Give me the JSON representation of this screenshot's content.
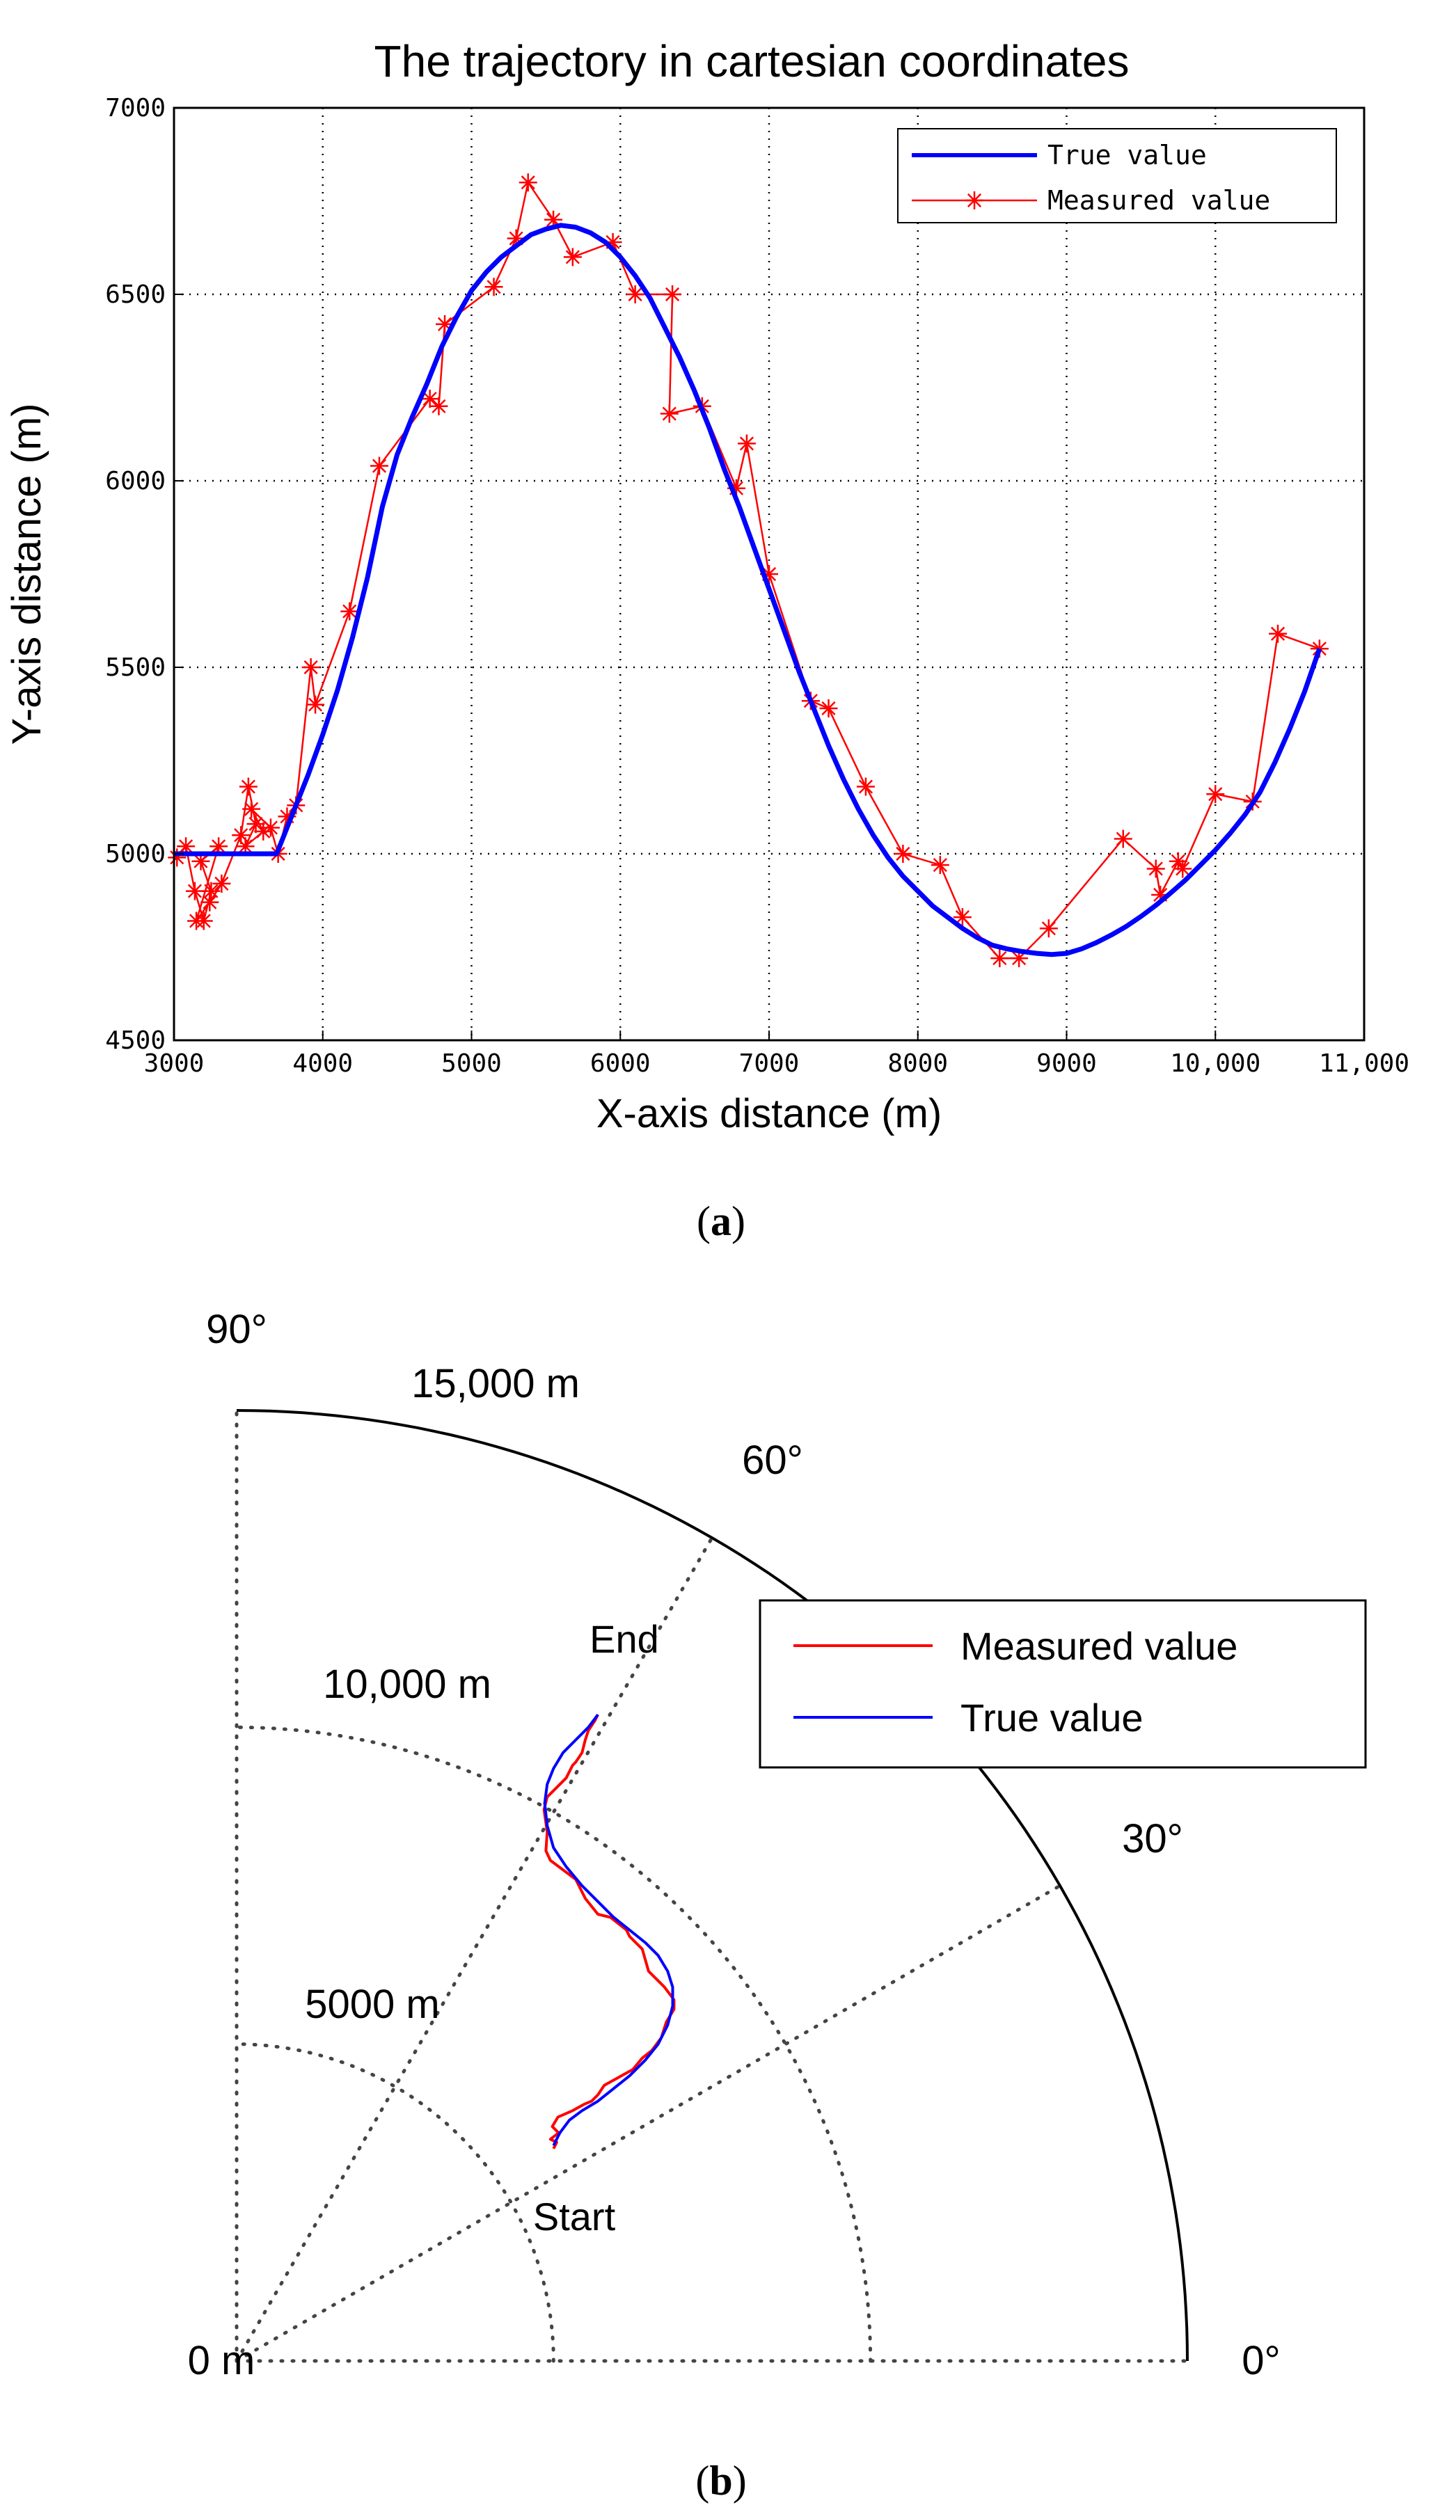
{
  "chart_data": [
    {
      "type": "line",
      "panel_label": "(a)",
      "panel_label_letter": "a",
      "title": "The trajectory in cartesian coordinates",
      "xlabel": "X-axis distance (m)",
      "ylabel": "Y-axis distance (m)",
      "xlim": [
        3000,
        11000
      ],
      "ylim": [
        4500,
        7000
      ],
      "x_ticks": [
        3000,
        4000,
        5000,
        6000,
        7000,
        8000,
        9000,
        10000,
        11000
      ],
      "x_tick_labels": [
        "3000",
        "4000",
        "5000",
        "6000",
        "7000",
        "8000",
        "9000",
        "10,000",
        "11,000"
      ],
      "y_ticks": [
        4500,
        5000,
        5500,
        6000,
        6500,
        7000
      ],
      "y_tick_labels": [
        "4500",
        "5000",
        "5500",
        "6000",
        "6500",
        "7000"
      ],
      "grid": true,
      "legend_position": "top-right",
      "series": [
        {
          "name": "True value",
          "color": "#0000ff",
          "style": "solid",
          "x": [
            3000,
            3690,
            3800,
            3900,
            4000,
            4100,
            4200,
            4300,
            4400,
            4500,
            4600,
            4700,
            4800,
            4900,
            5000,
            5100,
            5200,
            5300,
            5400,
            5500,
            5600,
            5700,
            5800,
            5900,
            6000,
            6100,
            6200,
            6300,
            6400,
            6500,
            6600,
            6700,
            6800,
            6900,
            7000,
            7100,
            7200,
            7300,
            7400,
            7500,
            7600,
            7700,
            7800,
            7900,
            8000,
            8100,
            8200,
            8300,
            8400,
            8500,
            8600,
            8700,
            8800,
            8900,
            9000,
            9100,
            9200,
            9300,
            9400,
            9500,
            9600,
            9700,
            9800,
            9900,
            10000,
            10100,
            10200,
            10300,
            10400,
            10500,
            10600,
            10700
          ],
          "y": [
            5000,
            5000,
            5110,
            5210,
            5320,
            5440,
            5580,
            5740,
            5930,
            6070,
            6170,
            6260,
            6360,
            6440,
            6510,
            6560,
            6600,
            6630,
            6660,
            6675,
            6685,
            6680,
            6665,
            6640,
            6600,
            6550,
            6490,
            6410,
            6330,
            6240,
            6140,
            6030,
            5930,
            5820,
            5710,
            5600,
            5490,
            5390,
            5290,
            5200,
            5120,
            5050,
            4990,
            4940,
            4900,
            4860,
            4830,
            4800,
            4775,
            4755,
            4745,
            4738,
            4733,
            4730,
            4733,
            4745,
            4762,
            4782,
            4805,
            4832,
            4862,
            4895,
            4930,
            4970,
            5010,
            5055,
            5105,
            5165,
            5245,
            5335,
            5435,
            5550
          ]
        },
        {
          "name": "Measured value",
          "color": "#ff0000",
          "style": "line-with-star-markers",
          "x": [
            3020,
            3080,
            3140,
            3200,
            3250,
            3180,
            3300,
            3150,
            3240,
            3320,
            3450,
            3500,
            3550,
            3480,
            3600,
            3520,
            3650,
            3700,
            3760,
            3820,
            3920,
            3950,
            4180,
            4380,
            4720,
            4780,
            4820,
            5150,
            5300,
            5380,
            5550,
            5680,
            5950,
            6100,
            6350,
            6330,
            6550,
            6780,
            6850,
            7000,
            7280,
            7400,
            7650,
            7900,
            8150,
            8300,
            8550,
            8680,
            8880,
            9380,
            9600,
            9630,
            9750,
            9780,
            10000,
            10250,
            10420,
            10700
          ],
          "y": [
            4990,
            5020,
            4900,
            4820,
            4900,
            4980,
            5020,
            4820,
            4870,
            4920,
            5050,
            5180,
            5080,
            5020,
            5060,
            5120,
            5070,
            5000,
            5100,
            5130,
            5500,
            5400,
            5650,
            6040,
            6220,
            6200,
            6420,
            6520,
            6650,
            6800,
            6700,
            6600,
            6640,
            6500,
            6500,
            6180,
            6200,
            5980,
            6100,
            5750,
            5410,
            5390,
            5180,
            5000,
            4970,
            4830,
            4720,
            4720,
            4800,
            5040,
            4960,
            4890,
            4980,
            4960,
            5160,
            5140,
            5590,
            5550
          ]
        }
      ]
    },
    {
      "type": "polar",
      "panel_label": "(b)",
      "panel_label_letter": "b",
      "rlim": [
        0,
        15000
      ],
      "radial_labels": [
        "0 m",
        "5000 m",
        "10,000 m",
        "15,000 m"
      ],
      "radial_values": [
        0,
        5000,
        10000,
        15000
      ],
      "angle_labels": [
        "0°",
        "30°",
        "60°",
        "90°"
      ],
      "angle_values": [
        0,
        30,
        60,
        90
      ],
      "legend_position": "top-right",
      "annotations": {
        "start": "Start",
        "end": "End"
      },
      "series": [
        {
          "name": "Measured value",
          "color": "#ff0000",
          "x": [
            5000,
            5050,
            4950,
            5080,
            4980,
            5070,
            5300,
            5480,
            5600,
            5700,
            5800,
            6250,
            6400,
            6550,
            6700,
            6780,
            6900,
            6900,
            6750,
            6650,
            6500,
            6400,
            6200,
            6150,
            5900,
            5700,
            5500,
            5350,
            4950,
            4880,
            4900,
            4850,
            4900,
            5000,
            5050,
            5200,
            5300,
            5350,
            5450,
            5500,
            5550,
            5650,
            5700
          ],
          "y": [
            3350,
            3450,
            3500,
            3600,
            3700,
            3850,
            3950,
            4050,
            4100,
            4200,
            4350,
            4600,
            4780,
            4900,
            5100,
            5350,
            5550,
            5700,
            5900,
            6000,
            6150,
            6500,
            6700,
            6800,
            7000,
            7050,
            7300,
            7600,
            7900,
            8050,
            8350,
            8700,
            8900,
            9000,
            9050,
            9200,
            9400,
            9450,
            9600,
            9800,
            9950,
            10100,
            10200
          ]
        },
        {
          "name": "True value",
          "color": "#0000ff",
          "x": [
            5000,
            5100,
            5250,
            5450,
            5700,
            5950,
            6200,
            6450,
            6650,
            6800,
            6880,
            6880,
            6800,
            6650,
            6450,
            6200,
            5950,
            5700,
            5450,
            5200,
            5000,
            4900,
            4860,
            4900,
            5000,
            5150,
            5350,
            5550,
            5700
          ],
          "y": [
            3400,
            3600,
            3800,
            3950,
            4100,
            4300,
            4500,
            4750,
            5000,
            5300,
            5600,
            5900,
            6150,
            6400,
            6600,
            6800,
            7000,
            7250,
            7500,
            7800,
            8100,
            8450,
            8800,
            9100,
            9350,
            9600,
            9800,
            10000,
            10200
          ]
        }
      ]
    }
  ]
}
